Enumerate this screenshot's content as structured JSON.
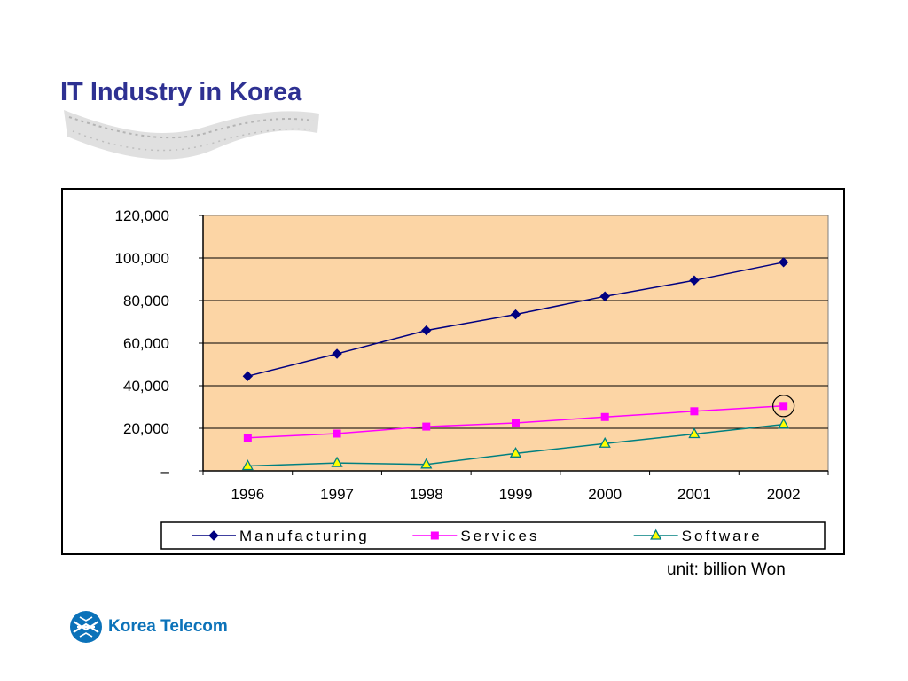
{
  "slide": {
    "title": "IT Industry in Korea",
    "unit_note": "unit: billion Won",
    "brand": "Korea Telecom"
  },
  "colors": {
    "title": "#2e3192",
    "plot_background": "#fcd5a5",
    "manufacturing": "#000080",
    "services": "#ff00ff",
    "software": "#008080",
    "brand": "#0b72b9"
  },
  "chart_data": {
    "type": "line",
    "categories": [
      "1996",
      "1997",
      "1998",
      "1999",
      "2000",
      "2001",
      "2002"
    ],
    "y_ticks": [
      "–",
      "20,000",
      "40,000",
      "60,000",
      "80,000",
      "100,000",
      "120,000"
    ],
    "ylim": [
      0,
      120000
    ],
    "grid": true,
    "legend_position": "bottom",
    "series": [
      {
        "name": "Manufacturing",
        "marker": "diamond",
        "color": "#000080",
        "values": [
          44500,
          55000,
          66000,
          73500,
          82000,
          89500,
          98000
        ]
      },
      {
        "name": "Services",
        "marker": "square",
        "color": "#ff00ff",
        "values": [
          15500,
          17500,
          20800,
          22500,
          25300,
          28000,
          30500
        ]
      },
      {
        "name": "Software",
        "marker": "triangle",
        "color": "#008080",
        "values": [
          2300,
          3700,
          3000,
          8200,
          12800,
          17300,
          21800
        ]
      }
    ],
    "annotations": [
      {
        "type": "circle",
        "series": "Services",
        "category": "2002"
      }
    ]
  }
}
